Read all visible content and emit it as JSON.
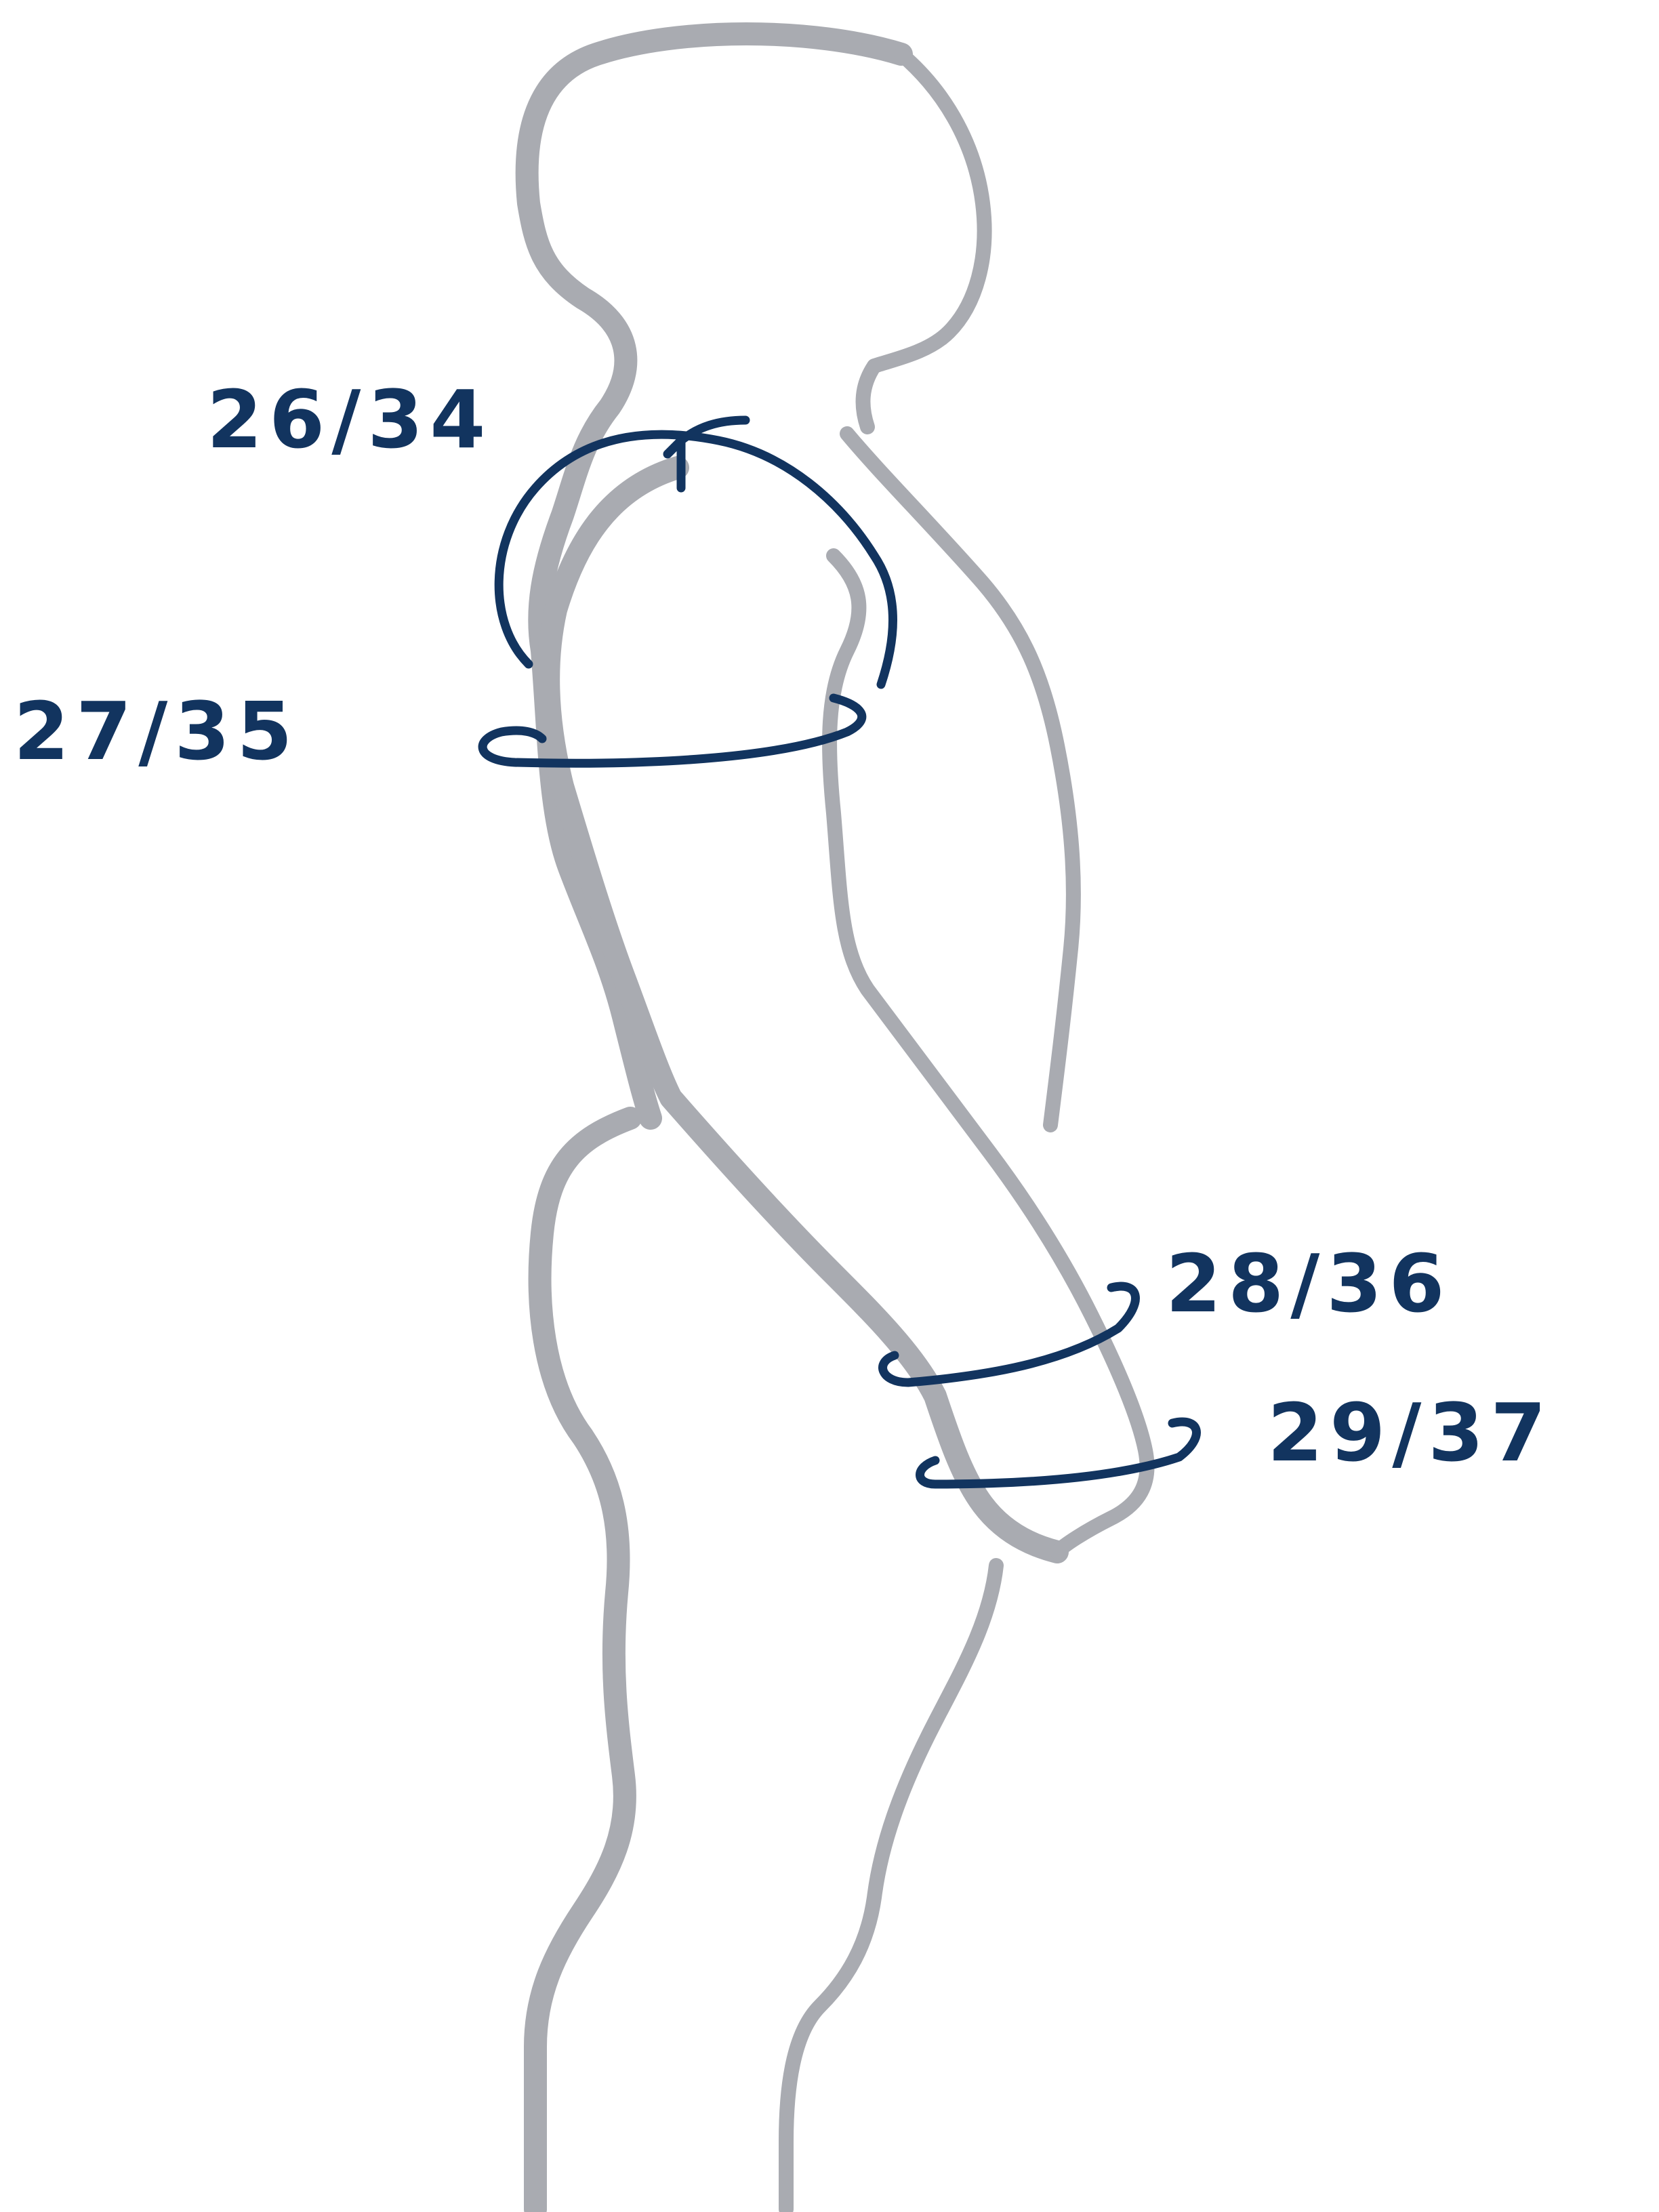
{
  "measurement_labels": {
    "shoulder_top": "26/34",
    "upper_arm": "27/35",
    "forearm": "28/36",
    "wrist": "29/37"
  },
  "colors": {
    "body_outline": "#a9abb1",
    "ink": "#12345f",
    "background": "#ffffff"
  }
}
